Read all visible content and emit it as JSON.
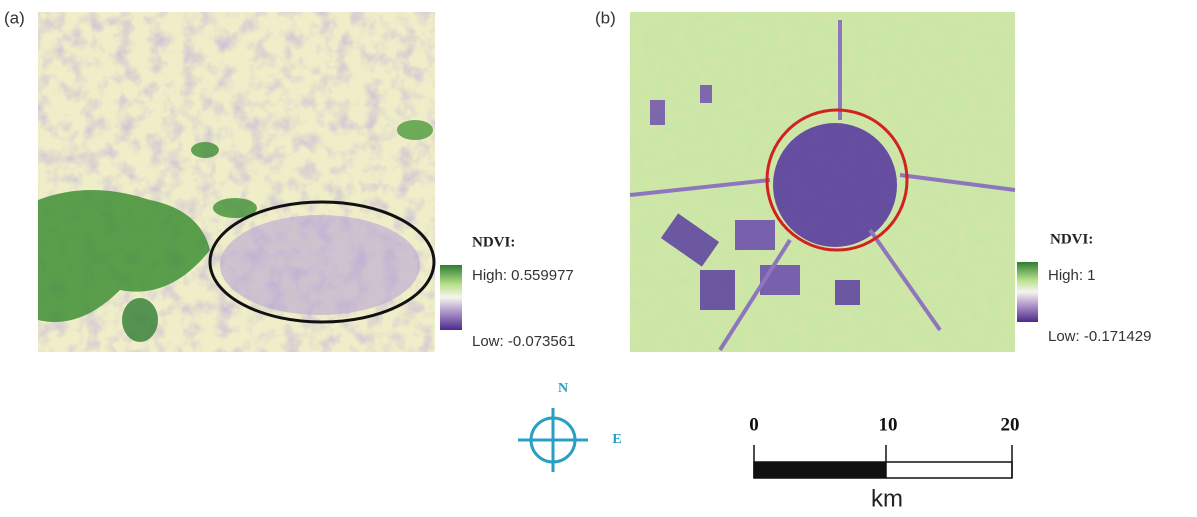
{
  "panels": [
    {
      "label": "(a)",
      "legend": {
        "title": "NDVI:",
        "high": "High: 0.559977",
        "low": "Low: -0.073561"
      }
    },
    {
      "label": "(b)",
      "legend": {
        "title": "NDVI:",
        "high": "High: 1",
        "low": "Low: -0.171429"
      }
    }
  ],
  "compass": {
    "north": "N",
    "east": "E"
  },
  "scale_bar": {
    "ticks": [
      "0",
      "10",
      "20"
    ],
    "unit": "km"
  }
}
